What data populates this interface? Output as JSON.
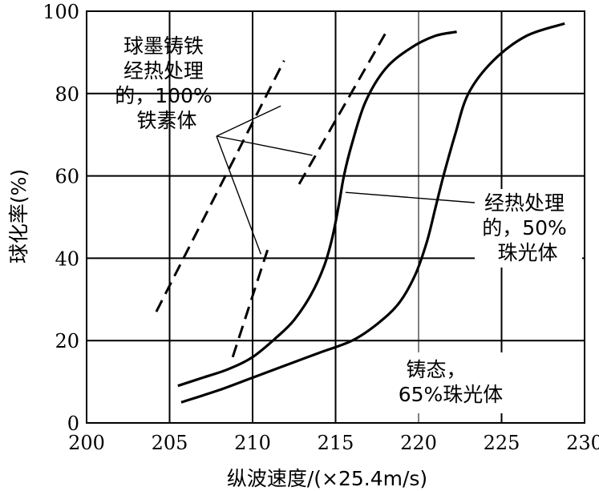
{
  "chart_data": {
    "type": "line",
    "title": "",
    "xlabel": "纵波速度/(×25.4m/s)",
    "ylabel": "球化率(%)",
    "xlim": [
      200,
      230
    ],
    "ylim": [
      0,
      100
    ],
    "x_ticks": [
      "200",
      "205",
      "210",
      "215",
      "220",
      "225",
      "230"
    ],
    "y_ticks": [
      "0",
      "20",
      "40",
      "60",
      "80",
      "100"
    ],
    "grid": true,
    "series": [
      {
        "style": "dashed",
        "x": [
          204.2,
          211.9
        ],
        "y": [
          27,
          88
        ]
      },
      {
        "style": "dashed",
        "x": [
          208.8,
          210.9
        ],
        "y": [
          16,
          42
        ]
      },
      {
        "style": "dashed",
        "x": [
          212.8,
          218.2
        ],
        "y": [
          58,
          96
        ]
      },
      {
        "style": "solid",
        "x": [
          205.5,
          207.0,
          208.5,
          210.0,
          211.5,
          212.5,
          213.5,
          214.3,
          214.8,
          215.2,
          215.5,
          216.0,
          216.8,
          218.0,
          219.5,
          221.0,
          222.3
        ],
        "y": [
          9,
          11,
          13,
          16,
          21,
          25,
          31,
          38,
          45,
          53,
          60,
          68,
          78,
          86,
          91,
          94,
          95
        ]
      },
      {
        "style": "solid",
        "x": [
          205.7,
          208.0,
          210.0,
          212.0,
          214.0,
          216.0,
          217.5,
          218.8,
          219.8,
          220.5,
          221.0,
          221.5,
          222.2,
          223.0,
          224.5,
          226.5,
          228.8
        ],
        "y": [
          5,
          8,
          11,
          14,
          17,
          20,
          24,
          29,
          36,
          44,
          52,
          60,
          70,
          80,
          88,
          94,
          97
        ]
      }
    ],
    "annotations": [
      {
        "lines": [
          "球墨铸铁",
          "经热处理",
          "的，100%",
          "铁素体"
        ]
      },
      {
        "lines": [
          "经热处理",
          "的，50%",
          "珠光体"
        ]
      },
      {
        "lines": [
          "铸态，",
          "65%珠光体"
        ]
      }
    ]
  }
}
